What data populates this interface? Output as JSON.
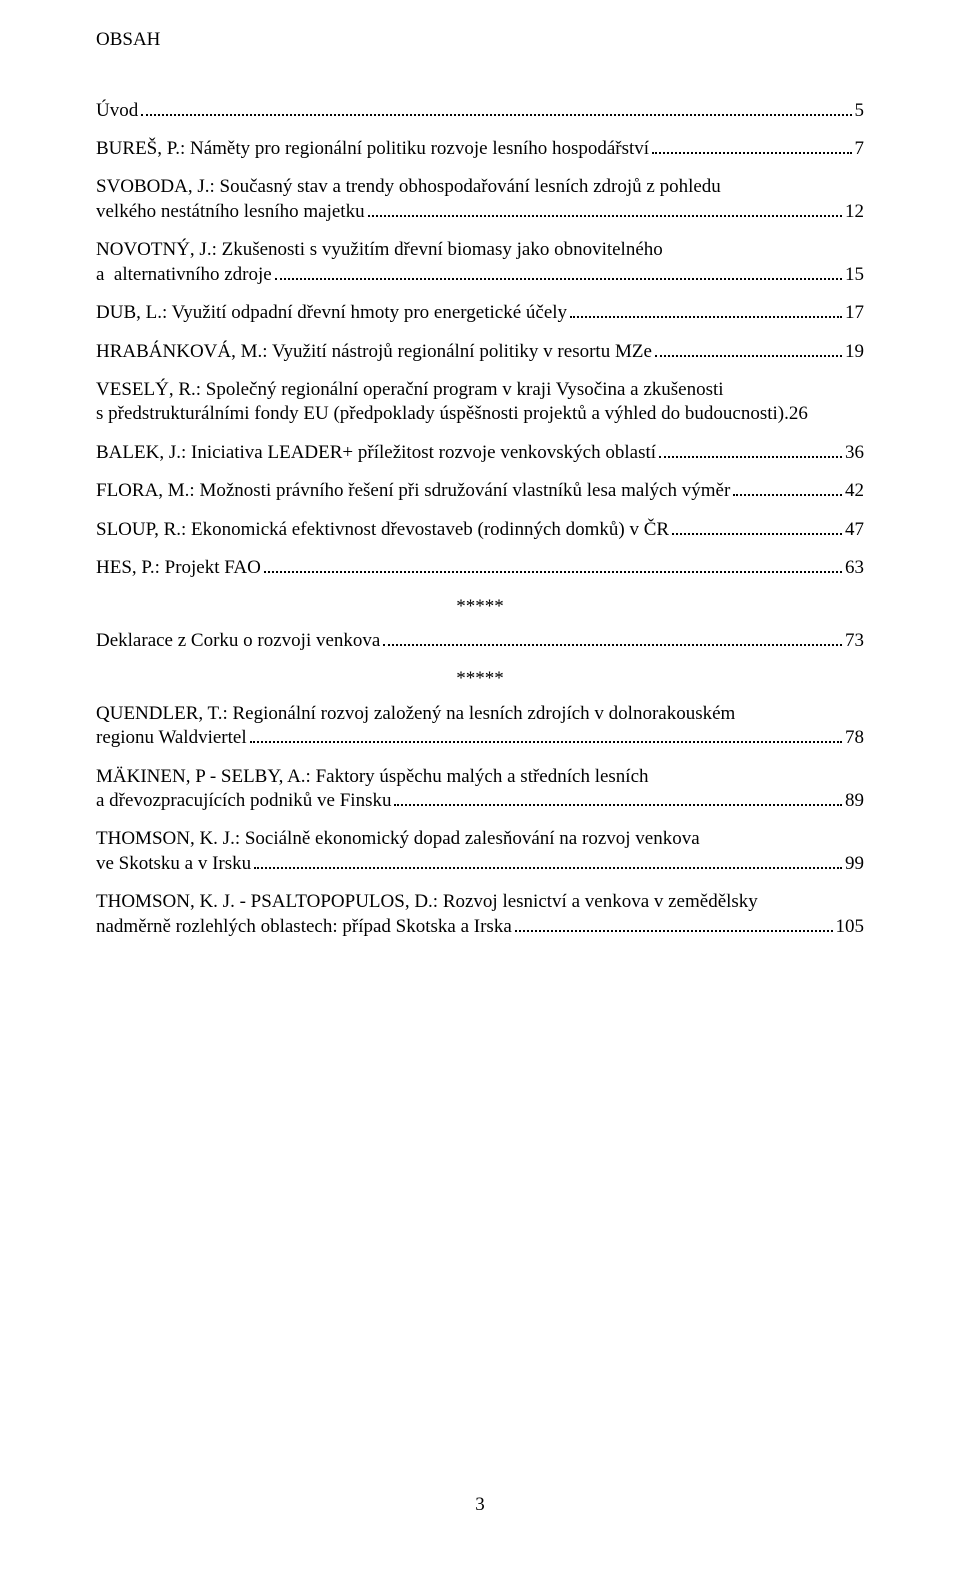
{
  "title": "OBSAH",
  "separator": "*****",
  "footer_page_number": "3",
  "entries": [
    {
      "lines": [
        "Úvod"
      ],
      "page": "5"
    },
    {
      "lines": [
        "BUREŠ, P.: Náměty pro regionální politiku rozvoje lesního hospodářství"
      ],
      "page": "7"
    },
    {
      "lines": [
        "SVOBODA, J.: Současný stav a trendy obhospodařování lesních zdrojů z pohledu",
        "velkého nestátního lesního majetku"
      ],
      "page": "12"
    },
    {
      "lines": [
        "NOVOTNÝ, J.: Zkušenosti s využitím dřevní biomasy jako obnovitelného",
        "a  alternativního zdroje"
      ],
      "page": "15"
    },
    {
      "lines": [
        "DUB, L.: Využití odpadní dřevní hmoty pro energetické účely"
      ],
      "page": "17"
    },
    {
      "lines": [
        "HRABÁNKOVÁ, M.: Využití nástrojů regionální politiky v resortu MZe"
      ],
      "page": "19"
    },
    {
      "lines": [
        "VESELÝ, R.: Společný regionální operační program v kraji Vysočina a zkušenosti",
        "s předstrukturálními fondy EU (předpoklady úspěšnosti projektů a výhled do budoucnosti)."
      ],
      "page": "26",
      "tight": true
    },
    {
      "lines": [
        "BALEK, J.: Iniciativa LEADER+ příležitost rozvoje venkovských oblastí"
      ],
      "page": "36"
    },
    {
      "lines": [
        "FLORA, M.: Možnosti právního řešení při sdružování vlastníků lesa malých výměr"
      ],
      "page": "42"
    },
    {
      "lines": [
        "SLOUP, R.: Ekonomická efektivnost dřevostaveb (rodinných domků) v ČR"
      ],
      "page": "47"
    },
    {
      "lines": [
        "HES, P.: Projekt FAO"
      ],
      "page": "63"
    }
  ],
  "entries2": [
    {
      "lines": [
        "Deklarace z Corku o rozvoji venkova"
      ],
      "page": "73"
    }
  ],
  "entries3": [
    {
      "lines": [
        "QUENDLER, T.: Regionální rozvoj založený na lesních zdrojích v dolnorakouském",
        "regionu Waldviertel"
      ],
      "page": "78"
    },
    {
      "lines": [
        "MÄKINEN, P - SELBY, A.: Faktory úspěchu malých a středních lesních",
        "a dřevozpracujících podniků ve Finsku"
      ],
      "page": "89"
    },
    {
      "lines": [
        "THOMSON, K. J.: Sociálně ekonomický dopad zalesňování na rozvoj venkova",
        "ve Skotsku a v Irsku"
      ],
      "page": "99"
    },
    {
      "lines": [
        "THOMSON, K. J. - PSALTOPOPULOS, D.: Rozvoj lesnictví a venkova v zemědělsky",
        "nadměrně rozlehlých oblastech: případ Skotska a Irska"
      ],
      "page": "105"
    }
  ]
}
